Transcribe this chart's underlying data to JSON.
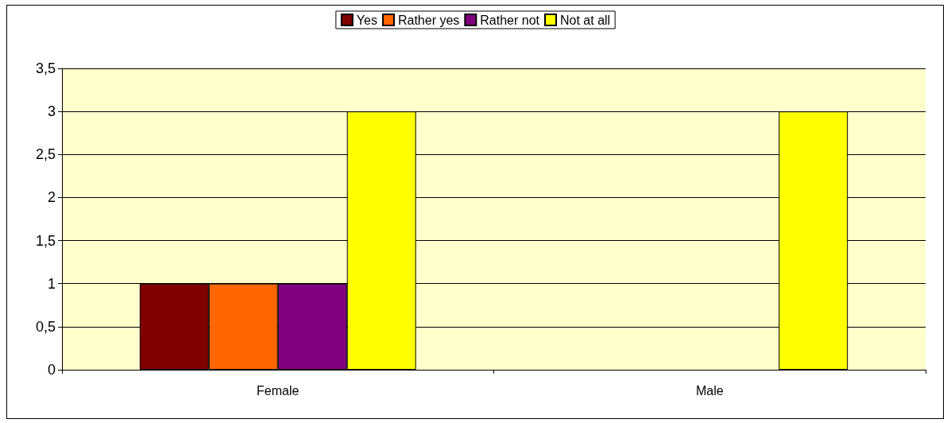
{
  "chart_data": {
    "type": "bar",
    "categories": [
      "Female",
      "Male"
    ],
    "series": [
      {
        "name": "Yes",
        "color": "#800000",
        "values": [
          1,
          null
        ]
      },
      {
        "name": "Rather yes",
        "color": "#ff6600",
        "values": [
          1,
          null
        ]
      },
      {
        "name": "Rather not",
        "color": "#800080",
        "values": [
          1,
          null
        ]
      },
      {
        "name": "Not at all",
        "color": "#ffff00",
        "values": [
          3,
          3
        ]
      }
    ],
    "ylim": [
      0,
      3.5
    ],
    "yticks": [
      0,
      {
        "value": 0.5,
        "label": "0,5"
      },
      1,
      {
        "value": 1.5,
        "label": "1,5"
      },
      2,
      {
        "value": 2.5,
        "label": "2,5"
      },
      3,
      {
        "value": 3.5,
        "label": "3,5"
      }
    ],
    "grid": "y",
    "legend": "top"
  }
}
